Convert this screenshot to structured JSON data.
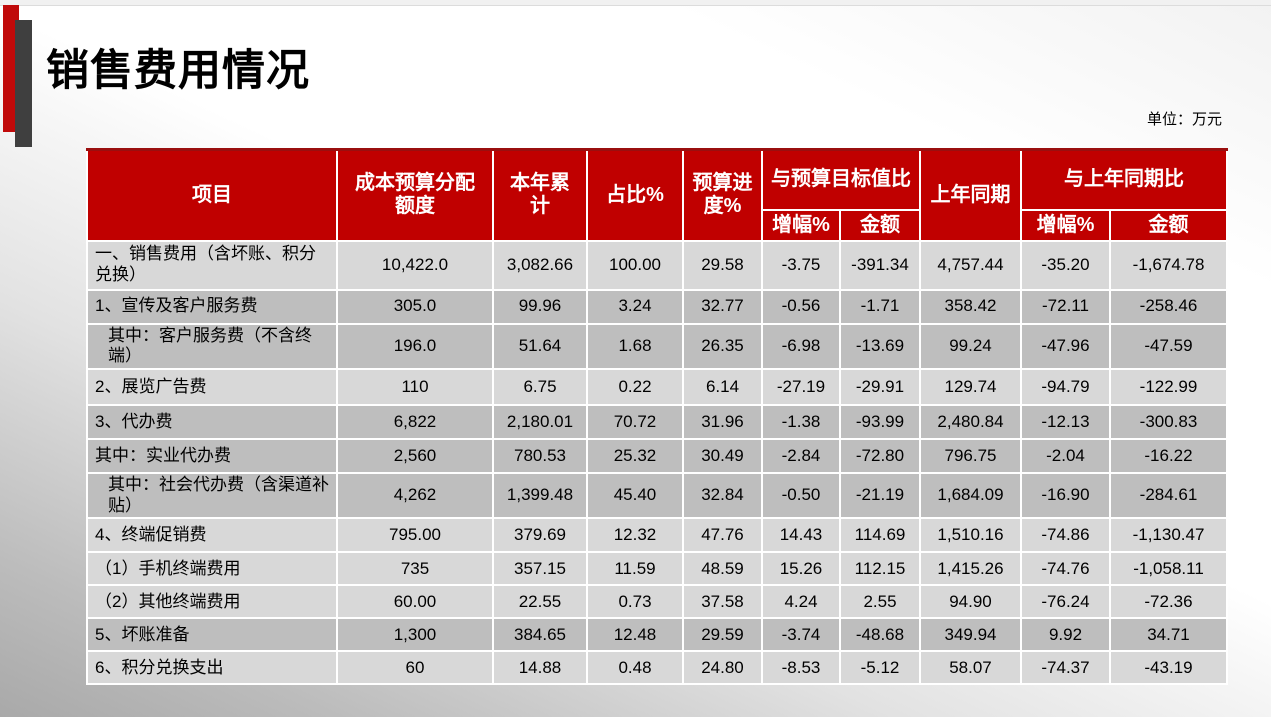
{
  "slide": {
    "title": "销售费用情况",
    "unit_note": "单位：万元"
  },
  "colors": {
    "header_red": "#C00000",
    "header_top_border": "#9A0F0F",
    "accent_red_bar": "#C00A0A",
    "accent_dark_bar": "#3F3F3F",
    "row_light": "#D8D8D8",
    "row_dark": "#BEBEBE"
  },
  "table": {
    "header": {
      "item": "项目",
      "budget_alloc": "成本预算分配额度",
      "ytd_total": "本年累计",
      "share_pct": "占比%",
      "budget_progress_pct": "预算进度%",
      "vs_budget_target": "与预算目标值比",
      "prev_year_same_period": "上年同期",
      "vs_prev_year": "与上年同期比",
      "sub_growth_pct": "增幅%",
      "sub_amount": "金额"
    },
    "rows": [
      {
        "label": "一、销售费用（含坏账、积分兑换）",
        "shade": "light",
        "indent": 0,
        "values": [
          "10,422.0",
          "3,082.66",
          "100.00",
          "29.58",
          "-3.75",
          "-391.34",
          "4,757.44",
          "-35.20",
          "-1,674.78"
        ]
      },
      {
        "label": "1、宣传及客户服务费",
        "shade": "dark",
        "indent": 0,
        "values": [
          "305.0",
          "99.96",
          "3.24",
          "32.77",
          "-0.56",
          "-1.71",
          "358.42",
          "-72.11",
          "-258.46"
        ]
      },
      {
        "label": "其中：客户服务费（不含终端）",
        "shade": "dark",
        "indent": 1,
        "values": [
          "196.0",
          "51.64",
          "1.68",
          "26.35",
          "-6.98",
          "-13.69",
          "99.24",
          "-47.96",
          "-47.59"
        ]
      },
      {
        "label": "2、展览广告费",
        "shade": "light",
        "indent": 0,
        "values": [
          "110",
          "6.75",
          "0.22",
          "6.14",
          "-27.19",
          "-29.91",
          "129.74",
          "-94.79",
          "-122.99"
        ]
      },
      {
        "label": "3、代办费",
        "shade": "dark",
        "indent": 0,
        "values": [
          "6,822",
          "2,180.01",
          "70.72",
          "31.96",
          "-1.38",
          "-93.99",
          "2,480.84",
          "-12.13",
          "-300.83"
        ]
      },
      {
        "label": "其中：实业代办费",
        "shade": "dark",
        "indent": 0,
        "values": [
          "2,560",
          "780.53",
          "25.32",
          "30.49",
          "-2.84",
          "-72.80",
          "796.75",
          "-2.04",
          "-16.22"
        ]
      },
      {
        "label": "其中：社会代办费（含渠道补贴）",
        "shade": "dark",
        "indent": 1,
        "values": [
          "4,262",
          "1,399.48",
          "45.40",
          "32.84",
          "-0.50",
          "-21.19",
          "1,684.09",
          "-16.90",
          "-284.61"
        ]
      },
      {
        "label": "4、终端促销费",
        "shade": "light",
        "indent": 0,
        "values": [
          "795.00",
          "379.69",
          "12.32",
          "47.76",
          "14.43",
          "114.69",
          "1,510.16",
          "-74.86",
          "-1,130.47"
        ]
      },
      {
        "label": "（1）手机终端费用",
        "shade": "light",
        "indent": 0,
        "values": [
          "735",
          "357.15",
          "11.59",
          "48.59",
          "15.26",
          "112.15",
          "1,415.26",
          "-74.76",
          "-1,058.11"
        ]
      },
      {
        "label": "（2）其他终端费用",
        "shade": "light",
        "indent": 0,
        "values": [
          "60.00",
          "22.55",
          "0.73",
          "37.58",
          "4.24",
          "2.55",
          "94.90",
          "-76.24",
          "-72.36"
        ]
      },
      {
        "label": "5、坏账准备",
        "shade": "dark",
        "indent": 0,
        "values": [
          "1,300",
          "384.65",
          "12.48",
          "29.59",
          "-3.74",
          "-48.68",
          "349.94",
          "9.92",
          "34.71"
        ]
      },
      {
        "label": "6、积分兑换支出",
        "shade": "light",
        "indent": 0,
        "values": [
          "60",
          "14.88",
          "0.48",
          "24.80",
          "-8.53",
          "-5.12",
          "58.07",
          "-74.37",
          "-43.19"
        ]
      }
    ]
  }
}
